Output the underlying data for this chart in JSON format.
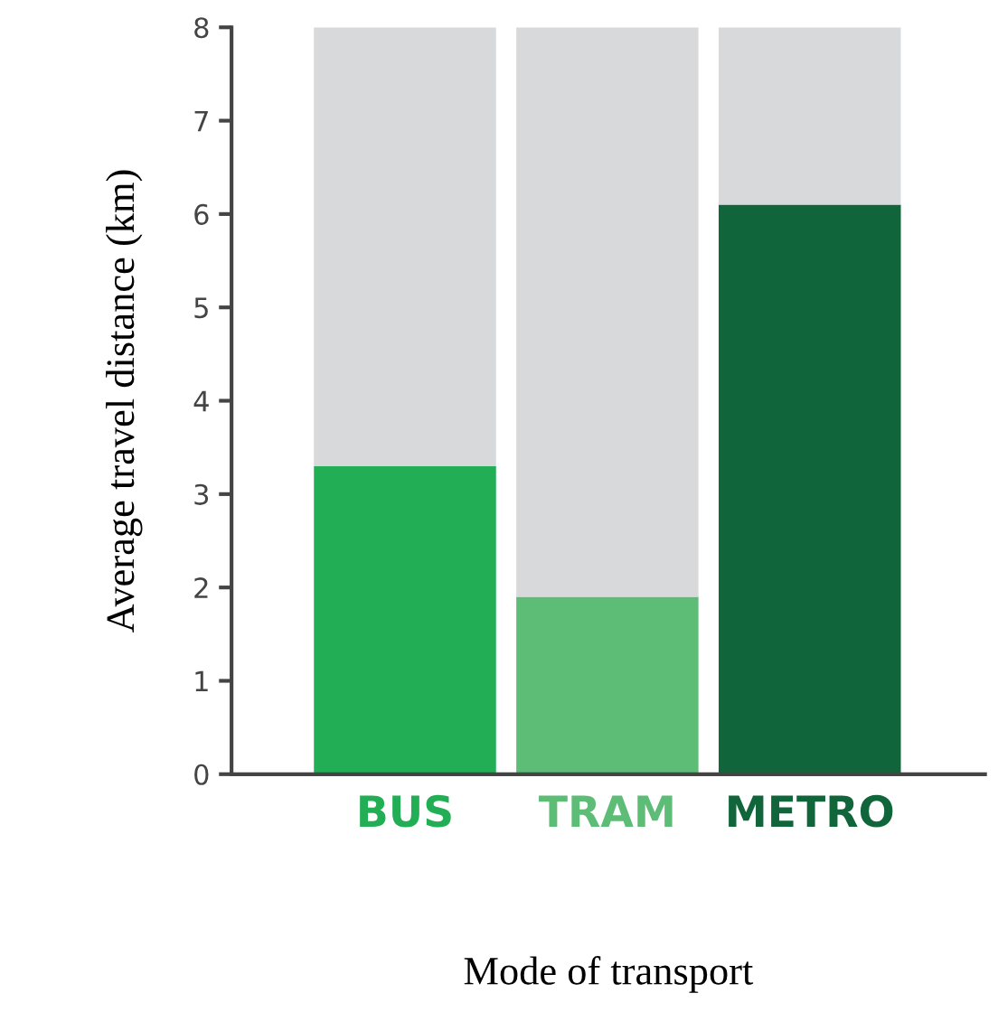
{
  "chart_data": {
    "type": "bar",
    "stacked": true,
    "xlabel": "Mode of transport",
    "ylabel": "Average travel distance (km)",
    "categories": [
      "BUS",
      "TRAM",
      "METRO"
    ],
    "series": [
      {
        "colors": [
          "#22ae55",
          "#5dbc76",
          "#10663a"
        ],
        "values": [
          3.3,
          1.9,
          6.1
        ]
      },
      {
        "color": "#d8d9db",
        "values": [
          4.7,
          6.1,
          1.9
        ]
      }
    ],
    "ylim": [
      0,
      8
    ],
    "yticks": [
      0,
      1,
      2,
      3,
      4,
      5,
      6,
      7,
      8
    ],
    "grid": false,
    "legend": false
  }
}
